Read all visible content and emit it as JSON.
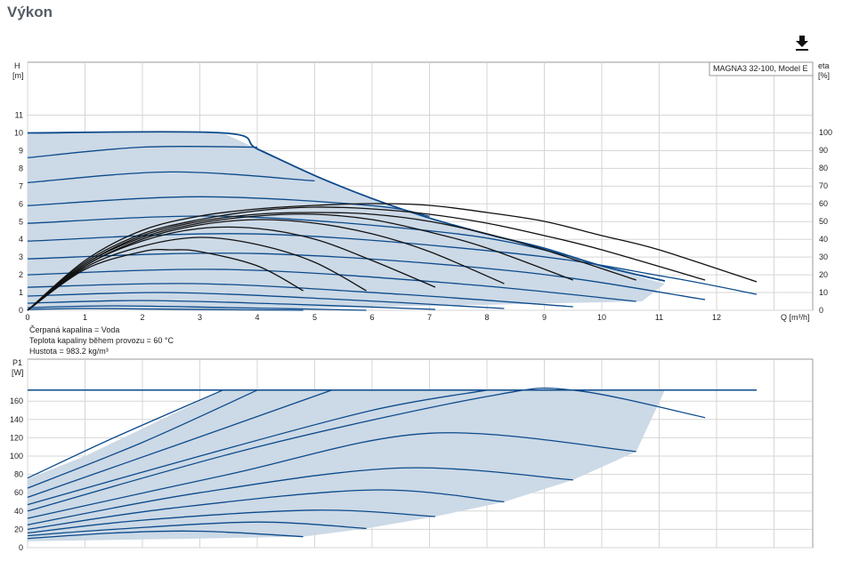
{
  "title": "Výkon",
  "download_icon": "download-icon",
  "info": {
    "liquid": "Čerpaná kapalina = Voda",
    "temperature": "Teplota kapaliny během provozu = 60 °C",
    "density": "Hustota = 983.2 kg/m³"
  },
  "colors": {
    "curve": "#0b4a8b",
    "fill": "#ccd9e6",
    "eta": "#111111",
    "grid": "#d6d6d6"
  },
  "chart_data": [
    {
      "type": "line",
      "legend": "MAGNA3 32-100, Model E",
      "legend_position": "top-right",
      "xlabel": "Q [m³/h]",
      "ylabel_left": "H [m]",
      "ylabel_right": "eta [%]",
      "xlim": [
        0,
        13.5
      ],
      "ylim_left": [
        0,
        11
      ],
      "ylim_right": [
        0,
        100
      ],
      "x_ticks": [
        0,
        1,
        2,
        3,
        4,
        5,
        6,
        7,
        8,
        9,
        10,
        11,
        12
      ],
      "y_ticks_left": [
        0,
        1,
        2,
        3,
        4,
        5,
        6,
        7,
        8,
        9,
        10,
        11
      ],
      "y_ticks_right": [
        0,
        10,
        20,
        30,
        40,
        50,
        60,
        70,
        80,
        90,
        100
      ],
      "grid": true,
      "max_curve": {
        "x": [
          0,
          3.4,
          4.0,
          5.0,
          6.0,
          7.0,
          8.0,
          9.0,
          10.0,
          11.1
        ],
        "y": [
          10,
          10,
          9.1,
          7.6,
          6.3,
          5.2,
          4.3,
          3.5,
          2.5,
          1.65
        ]
      },
      "operating_boundary": {
        "x": [
          0,
          3.4,
          4.0,
          5.0,
          6.0,
          7.0,
          8.0,
          9.0,
          10.0,
          11.1,
          10.7,
          7.1,
          6.0,
          4.8,
          3.0,
          1.0,
          0
        ],
        "y": [
          10,
          10,
          9.1,
          7.6,
          6.3,
          5.2,
          4.3,
          3.5,
          2.5,
          1.5,
          0.5,
          0.25,
          0.2,
          0.1,
          0.08,
          0.05,
          0
        ]
      },
      "head_series": [
        {
          "x": [
            0,
            2.0,
            4.0
          ],
          "y": [
            8.6,
            9.2,
            9.2
          ]
        },
        {
          "x": [
            0,
            2.5,
            5.0
          ],
          "y": [
            7.2,
            7.8,
            7.3
          ]
        },
        {
          "x": [
            0,
            3.0,
            6.0,
            7.0
          ],
          "y": [
            5.9,
            6.4,
            5.9,
            5.3
          ]
        },
        {
          "x": [
            0,
            3.5,
            7.5,
            9.5
          ],
          "y": [
            4.9,
            5.3,
            4.3,
            3.0
          ]
        },
        {
          "x": [
            0,
            4.0,
            8.5,
            11.1,
            12.7
          ],
          "y": [
            3.9,
            4.3,
            3.2,
            1.9,
            0.9
          ]
        },
        {
          "x": [
            0,
            4.0,
            8.5,
            11.8
          ],
          "y": [
            2.9,
            3.2,
            2.2,
            0.6
          ]
        },
        {
          "x": [
            0,
            3.5,
            7.5,
            10.6
          ],
          "y": [
            2.0,
            2.3,
            1.5,
            0.5
          ]
        },
        {
          "x": [
            0,
            3.0,
            6.5,
            9.5
          ],
          "y": [
            1.3,
            1.5,
            0.9,
            0.2
          ]
        },
        {
          "x": [
            0,
            2.5,
            5.5,
            8.3
          ],
          "y": [
            0.8,
            1.0,
            0.6,
            0.1
          ]
        },
        {
          "x": [
            0,
            2.0,
            4.5,
            7.1
          ],
          "y": [
            0.4,
            0.55,
            0.35,
            0.05
          ]
        },
        {
          "x": [
            0,
            1.5,
            3.5,
            5.9
          ],
          "y": [
            0.15,
            0.25,
            0.15,
            0.0
          ]
        },
        {
          "x": [
            0,
            1.0,
            2.5,
            4.8
          ],
          "y": [
            0.05,
            0.1,
            0.06,
            0.0
          ]
        }
      ],
      "efficiency_series": [
        {
          "x": [
            0,
            1.0,
            2.0,
            2.5,
            3.0,
            4.0,
            4.8
          ],
          "y": [
            0,
            23,
            33,
            34,
            33,
            25,
            11
          ]
        },
        {
          "x": [
            0,
            1.0,
            2.0,
            3.0,
            4.0,
            5.0,
            5.9
          ],
          "y": [
            0,
            24,
            36,
            41,
            37,
            27,
            11
          ]
        },
        {
          "x": [
            0,
            1.0,
            2.0,
            3.0,
            4.0,
            5.0,
            6.0,
            7.1
          ],
          "y": [
            0,
            25,
            39,
            46,
            46,
            40,
            28,
            13
          ]
        },
        {
          "x": [
            0,
            1.0,
            2.0,
            3.0,
            4.0,
            5.0,
            6.0,
            7.0,
            8.3
          ],
          "y": [
            0,
            25,
            40,
            48,
            51,
            49,
            43,
            33,
            15
          ]
        },
        {
          "x": [
            0,
            1.0,
            2.0,
            3.0,
            4.0,
            5.0,
            6.0,
            7.0,
            8.0,
            9.5
          ],
          "y": [
            0,
            26,
            41,
            49,
            53,
            54,
            51,
            44,
            35,
            17
          ]
        },
        {
          "x": [
            0,
            1.0,
            2.0,
            3.0,
            4.0,
            5.0,
            6.0,
            7.0,
            8.0,
            9.0,
            10.6
          ],
          "y": [
            0,
            26,
            42,
            50,
            54,
            55,
            54,
            50,
            43,
            34,
            17
          ]
        },
        {
          "x": [
            0,
            1.0,
            2.0,
            3.0,
            4.0,
            5.0,
            6.0,
            7.0,
            8.0,
            9.0,
            10.0,
            11.8
          ],
          "y": [
            0,
            27,
            43,
            51,
            56,
            58,
            57,
            54,
            49,
            42,
            34,
            17
          ]
        },
        {
          "x": [
            0,
            1.0,
            2.0,
            3.0,
            4.0,
            5.0,
            6.0,
            7.0,
            8.0,
            9.0,
            10.0,
            11.0,
            12.7
          ],
          "y": [
            0,
            28,
            45,
            53,
            57,
            59,
            60,
            59,
            55,
            50,
            42,
            34,
            16
          ]
        }
      ]
    },
    {
      "type": "line",
      "ylabel": "P1 [W]",
      "xlim": [
        0,
        13.5
      ],
      "ylim": [
        0,
        180
      ],
      "y_ticks": [
        0,
        20,
        40,
        60,
        80,
        100,
        120,
        140,
        160
      ],
      "grid": true,
      "max_power_line": {
        "x": [
          0,
          3.4,
          12.7
        ],
        "y": [
          172,
          172,
          172
        ]
      },
      "operating_boundary": {
        "x": [
          0,
          1.0,
          2.0,
          3.4,
          11.1,
          10.6,
          9.5,
          8.3,
          7.1,
          5.9,
          4.8,
          3.0,
          1.0,
          0
        ],
        "y": [
          75,
          100,
          130,
          172,
          172,
          105,
          74,
          50,
          34,
          21,
          12,
          10,
          8,
          7
        ]
      },
      "power_series": [
        {
          "x": [
            0,
            1.5,
            3.4
          ],
          "y": [
            76,
            120,
            172
          ]
        },
        {
          "x": [
            0,
            2.0,
            4.0
          ],
          "y": [
            65,
            115,
            172
          ]
        },
        {
          "x": [
            0,
            2.5,
            5.3
          ],
          "y": [
            55,
            110,
            172
          ]
        },
        {
          "x": [
            0,
            3.0,
            6.0,
            8.0
          ],
          "y": [
            47,
            100,
            150,
            172
          ]
        },
        {
          "x": [
            0,
            4.0,
            8.0,
            9.5,
            11.8
          ],
          "y": [
            40,
            110,
            165,
            172,
            142
          ]
        },
        {
          "x": [
            0,
            3.5,
            7.0,
            10.6
          ],
          "y": [
            32,
            80,
            125,
            105
          ]
        },
        {
          "x": [
            0,
            3.0,
            6.5,
            9.5
          ],
          "y": [
            25,
            60,
            87,
            74
          ]
        },
        {
          "x": [
            0,
            2.5,
            6.0,
            8.3
          ],
          "y": [
            20,
            43,
            63,
            50
          ]
        },
        {
          "x": [
            0,
            2.0,
            5.0,
            7.1
          ],
          "y": [
            16,
            30,
            41,
            34
          ]
        },
        {
          "x": [
            0,
            1.5,
            4.0,
            5.9
          ],
          "y": [
            13,
            20,
            28,
            21
          ]
        },
        {
          "x": [
            0,
            1.5,
            3.0,
            4.8
          ],
          "y": [
            10,
            16,
            18,
            12
          ]
        }
      ]
    }
  ]
}
